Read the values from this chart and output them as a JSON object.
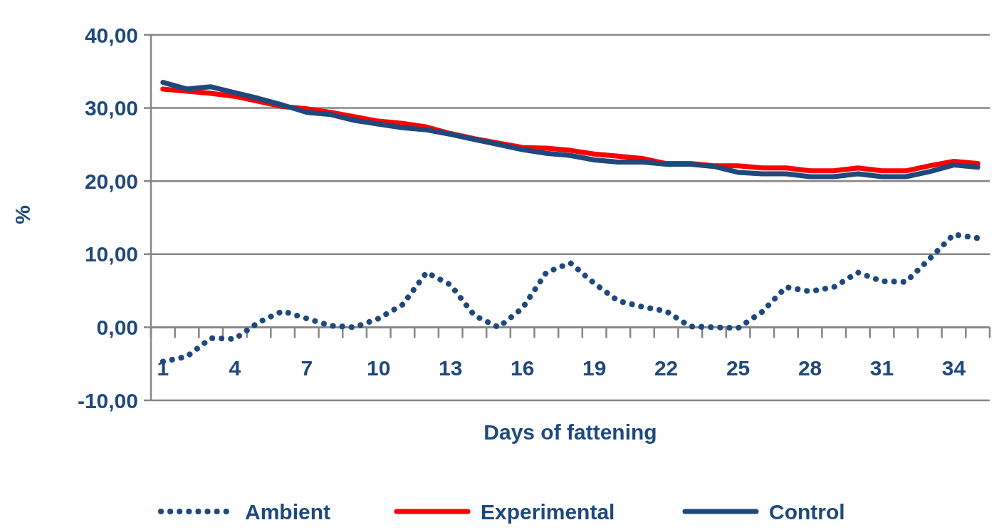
{
  "chart_data": {
    "type": "line",
    "xlabel": "Days of fattening",
    "ylabel": "%",
    "categories": [
      "1",
      null,
      null,
      "4",
      null,
      null,
      "7",
      null,
      null,
      "10",
      null,
      null,
      "13",
      null,
      null,
      "16",
      null,
      null,
      "19",
      null,
      null,
      "22",
      null,
      null,
      "25",
      null,
      null,
      "28",
      null,
      null,
      "31",
      null,
      null,
      "34",
      null
    ],
    "ylim": [
      -10,
      40
    ],
    "yticks": [
      {
        "value": -10,
        "label": "-10,00"
      },
      {
        "value": 0,
        "label": "0,00"
      },
      {
        "value": 10,
        "label": "10,00"
      },
      {
        "value": 20,
        "label": "20,00"
      },
      {
        "value": 30,
        "label": "30,00"
      },
      {
        "value": 40,
        "label": "40,00"
      }
    ],
    "grid": "y",
    "legend": "bottom",
    "series": [
      {
        "name": "Ambient",
        "color": "#1f497d",
        "line_style": "dotted",
        "values": [
          -4.7,
          -4.0,
          -1.5,
          -1.6,
          0.7,
          2.2,
          1.2,
          0.2,
          0,
          1.2,
          3.1,
          7.5,
          5.8,
          1.6,
          0,
          2.6,
          7.5,
          8.8,
          6.0,
          3.6,
          2.8,
          2.2,
          0.1,
          0,
          -0.1,
          2.1,
          5.5,
          4.9,
          5.5,
          7.5,
          6.3,
          6.2,
          9.4,
          12.7,
          12.2
        ]
      },
      {
        "name": "Experimental",
        "color": "#ff0000",
        "line_style": "solid",
        "values": [
          32.6,
          32.3,
          32.0,
          31.6,
          30.9,
          30.2,
          29.9,
          29.4,
          28.8,
          28.2,
          27.9,
          27.4,
          26.5,
          25.8,
          25.2,
          24.6,
          24.5,
          24.2,
          23.7,
          23.4,
          23.1,
          22.4,
          22.4,
          22.1,
          22.1,
          21.8,
          21.8,
          21.4,
          21.4,
          21.8,
          21.4,
          21.4,
          22.1,
          22.7,
          22.4
        ]
      },
      {
        "name": "Control",
        "color": "#1f497d",
        "line_style": "solid",
        "values": [
          33.5,
          32.6,
          32.9,
          32.1,
          31.3,
          30.4,
          29.4,
          29.1,
          28.3,
          27.8,
          27.3,
          27.0,
          26.4,
          25.7,
          25.0,
          24.3,
          23.8,
          23.5,
          22.9,
          22.6,
          22.6,
          22.3,
          22.3,
          22.0,
          21.2,
          21.0,
          21.0,
          20.6,
          20.6,
          21.0,
          20.6,
          20.6,
          21.3,
          22.2,
          21.9
        ]
      }
    ]
  }
}
